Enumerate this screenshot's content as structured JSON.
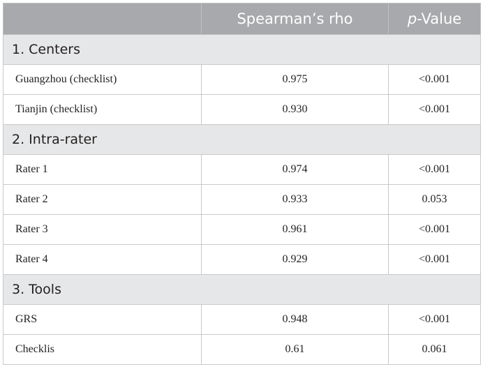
{
  "header": {
    "col1": "",
    "col2": "Spearman’s rho",
    "col3_italic": "p",
    "col3_rest": "-Value"
  },
  "sections": [
    {
      "title": "1. Centers",
      "rows": [
        {
          "label": "Guangzhou (checklist)",
          "rho": "0.975",
          "p": "<0.001"
        },
        {
          "label": "Tianjin (checklist)",
          "rho": "0.930",
          "p": "<0.001"
        }
      ]
    },
    {
      "title": "2. Intra-rater",
      "rows": [
        {
          "label": "Rater 1",
          "rho": "0.974",
          "p": "<0.001"
        },
        {
          "label": "Rater 2",
          "rho": "0.933",
          "p": "0.053"
        },
        {
          "label": "Rater 3",
          "rho": "0.961",
          "p": "<0.001"
        },
        {
          "label": "Rater 4",
          "rho": "0.929",
          "p": "<0.001"
        }
      ]
    },
    {
      "title": "3. Tools",
      "rows": [
        {
          "label": "GRS",
          "rho": "0.948",
          "p": "<0.001"
        },
        {
          "label": "Checklis",
          "rho": "0.61",
          "p": "0.061"
        }
      ]
    }
  ]
}
